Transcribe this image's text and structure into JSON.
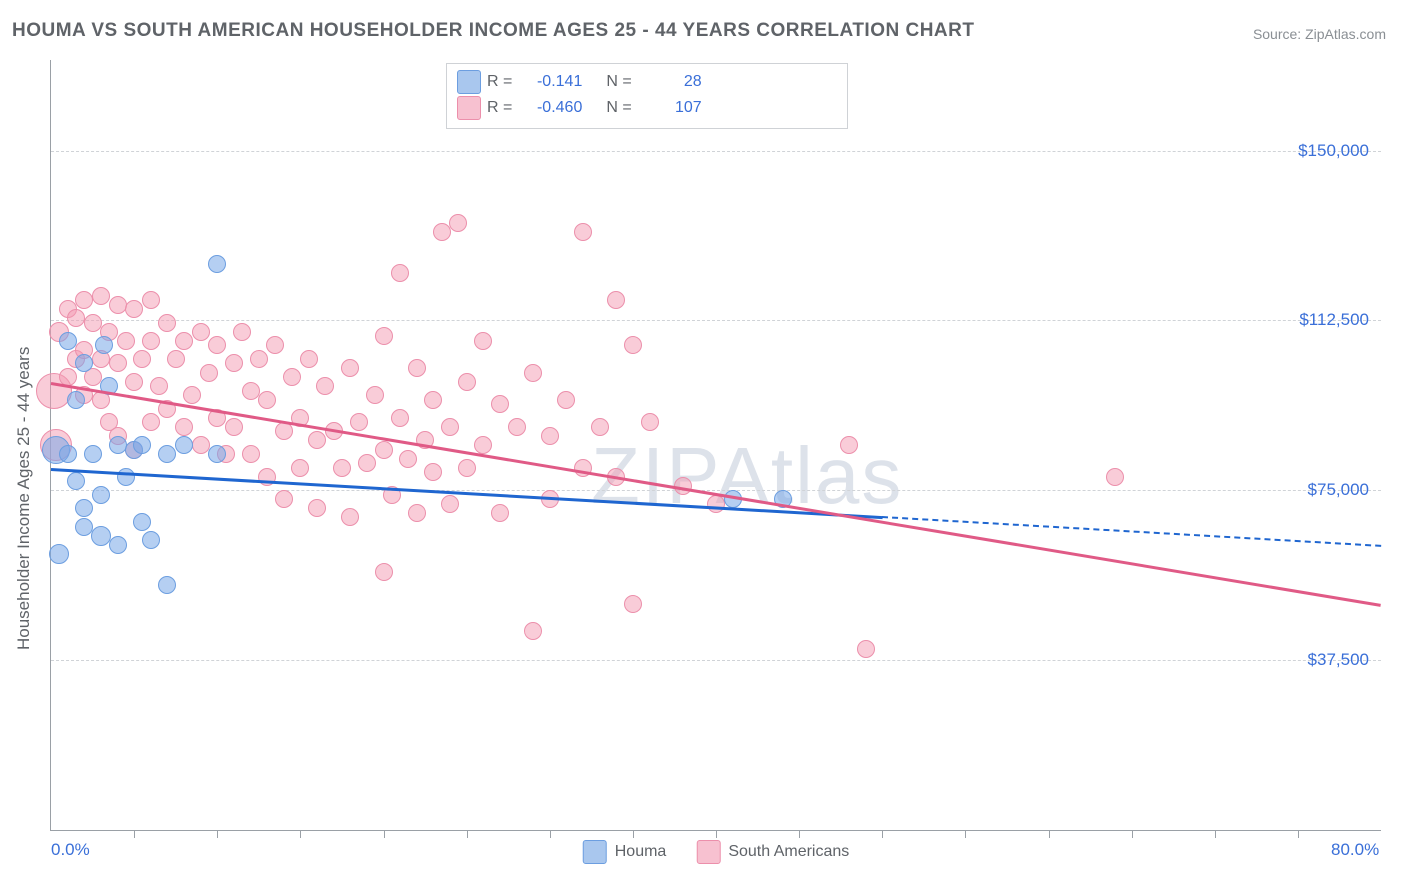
{
  "title": "HOUMA VS SOUTH AMERICAN HOUSEHOLDER INCOME AGES 25 - 44 YEARS CORRELATION CHART",
  "source_label": "Source: ZipAtlas.com",
  "watermark": "ZIPAtlas",
  "y_axis_title": "Householder Income Ages 25 - 44 years",
  "chart": {
    "type": "scatter",
    "xlim": [
      0,
      80
    ],
    "ylim": [
      0,
      170000
    ],
    "x_tick_step_pct": 5,
    "x_tick_labels": [
      {
        "value": 0,
        "label": "0.0%"
      },
      {
        "value": 80,
        "label": "80.0%"
      }
    ],
    "y_gridlines": [
      {
        "value": 37500,
        "label": "$37,500"
      },
      {
        "value": 75000,
        "label": "$75,000"
      },
      {
        "value": 112500,
        "label": "$112,500"
      },
      {
        "value": 150000,
        "label": "$150,000"
      }
    ],
    "series": [
      {
        "name": "Houma",
        "color_fill": "rgba(120,168,232,0.55)",
        "color_stroke": "#6c9ee0",
        "line_color": "#1f66d0",
        "R": "-0.141",
        "N": "28",
        "regression": {
          "y_at_x0": 80000,
          "y_at_x80": 63000,
          "solid_until_x": 50
        },
        "points": [
          {
            "x": 0.3,
            "y": 84000,
            "r": 14
          },
          {
            "x": 0.5,
            "y": 61000,
            "r": 10
          },
          {
            "x": 1,
            "y": 108000,
            "r": 9
          },
          {
            "x": 1,
            "y": 83000,
            "r": 9
          },
          {
            "x": 1.5,
            "y": 95000,
            "r": 9
          },
          {
            "x": 1.5,
            "y": 77000,
            "r": 9
          },
          {
            "x": 2,
            "y": 103000,
            "r": 9
          },
          {
            "x": 2,
            "y": 71000,
            "r": 9
          },
          {
            "x": 2,
            "y": 67000,
            "r": 9
          },
          {
            "x": 2.5,
            "y": 83000,
            "r": 9
          },
          {
            "x": 3,
            "y": 74000,
            "r": 9
          },
          {
            "x": 3,
            "y": 65000,
            "r": 10
          },
          {
            "x": 3.2,
            "y": 107000,
            "r": 9
          },
          {
            "x": 3.5,
            "y": 98000,
            "r": 9
          },
          {
            "x": 4,
            "y": 85000,
            "r": 9
          },
          {
            "x": 4,
            "y": 63000,
            "r": 9
          },
          {
            "x": 4.5,
            "y": 78000,
            "r": 9
          },
          {
            "x": 5,
            "y": 84000,
            "r": 9
          },
          {
            "x": 5.5,
            "y": 68000,
            "r": 9
          },
          {
            "x": 5.5,
            "y": 85000,
            "r": 9
          },
          {
            "x": 6,
            "y": 64000,
            "r": 9
          },
          {
            "x": 7,
            "y": 83000,
            "r": 9
          },
          {
            "x": 7,
            "y": 54000,
            "r": 9
          },
          {
            "x": 8,
            "y": 85000,
            "r": 9
          },
          {
            "x": 10,
            "y": 125000,
            "r": 9
          },
          {
            "x": 10,
            "y": 83000,
            "r": 9
          },
          {
            "x": 41,
            "y": 73000,
            "r": 9
          },
          {
            "x": 44,
            "y": 73000,
            "r": 9
          }
        ]
      },
      {
        "name": "South Americans",
        "color_fill": "rgba(244,154,178,0.50)",
        "color_stroke": "#ec8fab",
        "line_color": "#e05a86",
        "R": "-0.460",
        "N": "107",
        "regression": {
          "y_at_x0": 99000,
          "y_at_x80": 50000,
          "solid_until_x": 80
        },
        "points": [
          {
            "x": 0.2,
            "y": 97000,
            "r": 18
          },
          {
            "x": 0.3,
            "y": 85000,
            "r": 16
          },
          {
            "x": 0.5,
            "y": 110000,
            "r": 10
          },
          {
            "x": 1,
            "y": 115000,
            "r": 9
          },
          {
            "x": 1,
            "y": 100000,
            "r": 9
          },
          {
            "x": 1.5,
            "y": 113000,
            "r": 9
          },
          {
            "x": 1.5,
            "y": 104000,
            "r": 9
          },
          {
            "x": 2,
            "y": 117000,
            "r": 9
          },
          {
            "x": 2,
            "y": 106000,
            "r": 9
          },
          {
            "x": 2,
            "y": 96000,
            "r": 9
          },
          {
            "x": 2.5,
            "y": 112000,
            "r": 9
          },
          {
            "x": 2.5,
            "y": 100000,
            "r": 9
          },
          {
            "x": 3,
            "y": 118000,
            "r": 9
          },
          {
            "x": 3,
            "y": 104000,
            "r": 9
          },
          {
            "x": 3,
            "y": 95000,
            "r": 9
          },
          {
            "x": 3.5,
            "y": 110000,
            "r": 9
          },
          {
            "x": 3.5,
            "y": 90000,
            "r": 9
          },
          {
            "x": 4,
            "y": 116000,
            "r": 9
          },
          {
            "x": 4,
            "y": 103000,
            "r": 9
          },
          {
            "x": 4,
            "y": 87000,
            "r": 9
          },
          {
            "x": 4.5,
            "y": 108000,
            "r": 9
          },
          {
            "x": 5,
            "y": 115000,
            "r": 9
          },
          {
            "x": 5,
            "y": 99000,
            "r": 9
          },
          {
            "x": 5,
            "y": 84000,
            "r": 9
          },
          {
            "x": 5.5,
            "y": 104000,
            "r": 9
          },
          {
            "x": 6,
            "y": 117000,
            "r": 9
          },
          {
            "x": 6,
            "y": 108000,
            "r": 9
          },
          {
            "x": 6,
            "y": 90000,
            "r": 9
          },
          {
            "x": 6.5,
            "y": 98000,
            "r": 9
          },
          {
            "x": 7,
            "y": 112000,
            "r": 9
          },
          {
            "x": 7,
            "y": 93000,
            "r": 9
          },
          {
            "x": 7.5,
            "y": 104000,
            "r": 9
          },
          {
            "x": 8,
            "y": 108000,
            "r": 9
          },
          {
            "x": 8,
            "y": 89000,
            "r": 9
          },
          {
            "x": 8.5,
            "y": 96000,
            "r": 9
          },
          {
            "x": 9,
            "y": 110000,
            "r": 9
          },
          {
            "x": 9,
            "y": 85000,
            "r": 9
          },
          {
            "x": 9.5,
            "y": 101000,
            "r": 9
          },
          {
            "x": 10,
            "y": 107000,
            "r": 9
          },
          {
            "x": 10,
            "y": 91000,
            "r": 9
          },
          {
            "x": 10.5,
            "y": 83000,
            "r": 9
          },
          {
            "x": 11,
            "y": 103000,
            "r": 9
          },
          {
            "x": 11,
            "y": 89000,
            "r": 9
          },
          {
            "x": 11.5,
            "y": 110000,
            "r": 9
          },
          {
            "x": 12,
            "y": 97000,
            "r": 9
          },
          {
            "x": 12,
            "y": 83000,
            "r": 9
          },
          {
            "x": 12.5,
            "y": 104000,
            "r": 9
          },
          {
            "x": 13,
            "y": 95000,
            "r": 9
          },
          {
            "x": 13,
            "y": 78000,
            "r": 9
          },
          {
            "x": 13.5,
            "y": 107000,
            "r": 9
          },
          {
            "x": 14,
            "y": 88000,
            "r": 9
          },
          {
            "x": 14,
            "y": 73000,
            "r": 9
          },
          {
            "x": 14.5,
            "y": 100000,
            "r": 9
          },
          {
            "x": 15,
            "y": 91000,
            "r": 9
          },
          {
            "x": 15,
            "y": 80000,
            "r": 9
          },
          {
            "x": 15.5,
            "y": 104000,
            "r": 9
          },
          {
            "x": 16,
            "y": 86000,
            "r": 9
          },
          {
            "x": 16,
            "y": 71000,
            "r": 9
          },
          {
            "x": 16.5,
            "y": 98000,
            "r": 9
          },
          {
            "x": 17,
            "y": 88000,
            "r": 9
          },
          {
            "x": 17.5,
            "y": 80000,
            "r": 9
          },
          {
            "x": 18,
            "y": 102000,
            "r": 9
          },
          {
            "x": 18,
            "y": 69000,
            "r": 9
          },
          {
            "x": 18.5,
            "y": 90000,
            "r": 9
          },
          {
            "x": 19,
            "y": 81000,
            "r": 9
          },
          {
            "x": 19.5,
            "y": 96000,
            "r": 9
          },
          {
            "x": 20,
            "y": 109000,
            "r": 9
          },
          {
            "x": 20,
            "y": 84000,
            "r": 9
          },
          {
            "x": 20,
            "y": 57000,
            "r": 9
          },
          {
            "x": 20.5,
            "y": 74000,
            "r": 9
          },
          {
            "x": 21,
            "y": 123000,
            "r": 9
          },
          {
            "x": 21,
            "y": 91000,
            "r": 9
          },
          {
            "x": 21.5,
            "y": 82000,
            "r": 9
          },
          {
            "x": 22,
            "y": 102000,
            "r": 9
          },
          {
            "x": 22,
            "y": 70000,
            "r": 9
          },
          {
            "x": 22.5,
            "y": 86000,
            "r": 9
          },
          {
            "x": 23,
            "y": 95000,
            "r": 9
          },
          {
            "x": 23,
            "y": 79000,
            "r": 9
          },
          {
            "x": 23.5,
            "y": 132000,
            "r": 9
          },
          {
            "x": 24,
            "y": 89000,
            "r": 9
          },
          {
            "x": 24,
            "y": 72000,
            "r": 9
          },
          {
            "x": 24.5,
            "y": 134000,
            "r": 9
          },
          {
            "x": 25,
            "y": 99000,
            "r": 9
          },
          {
            "x": 25,
            "y": 80000,
            "r": 9
          },
          {
            "x": 26,
            "y": 108000,
            "r": 9
          },
          {
            "x": 26,
            "y": 85000,
            "r": 9
          },
          {
            "x": 27,
            "y": 94000,
            "r": 9
          },
          {
            "x": 27,
            "y": 70000,
            "r": 9
          },
          {
            "x": 28,
            "y": 89000,
            "r": 9
          },
          {
            "x": 29,
            "y": 101000,
            "r": 9
          },
          {
            "x": 29,
            "y": 44000,
            "r": 9
          },
          {
            "x": 30,
            "y": 87000,
            "r": 9
          },
          {
            "x": 30,
            "y": 73000,
            "r": 9
          },
          {
            "x": 31,
            "y": 95000,
            "r": 9
          },
          {
            "x": 32,
            "y": 132000,
            "r": 9
          },
          {
            "x": 32,
            "y": 80000,
            "r": 9
          },
          {
            "x": 33,
            "y": 89000,
            "r": 9
          },
          {
            "x": 34,
            "y": 117000,
            "r": 9
          },
          {
            "x": 34,
            "y": 78000,
            "r": 9
          },
          {
            "x": 35,
            "y": 107000,
            "r": 9
          },
          {
            "x": 35,
            "y": 50000,
            "r": 9
          },
          {
            "x": 36,
            "y": 90000,
            "r": 9
          },
          {
            "x": 40,
            "y": 72000,
            "r": 9
          },
          {
            "x": 48,
            "y": 85000,
            "r": 9
          },
          {
            "x": 49,
            "y": 40000,
            "r": 9
          },
          {
            "x": 64,
            "y": 78000,
            "r": 9
          },
          {
            "x": 38,
            "y": 76000,
            "r": 9
          }
        ]
      }
    ],
    "legend_swatches": {
      "houma": {
        "fill": "#a9c7ee",
        "stroke": "#6c9ee0"
      },
      "south": {
        "fill": "#f7c1d0",
        "stroke": "#ec8fab"
      }
    },
    "background_color": "#ffffff",
    "grid_color": "#d0d3d7",
    "axis_color": "#9aa0a6",
    "tick_color": "#3a6fd8",
    "title_color": "#5f6368",
    "title_fontsize": 19,
    "label_fontsize": 17
  }
}
